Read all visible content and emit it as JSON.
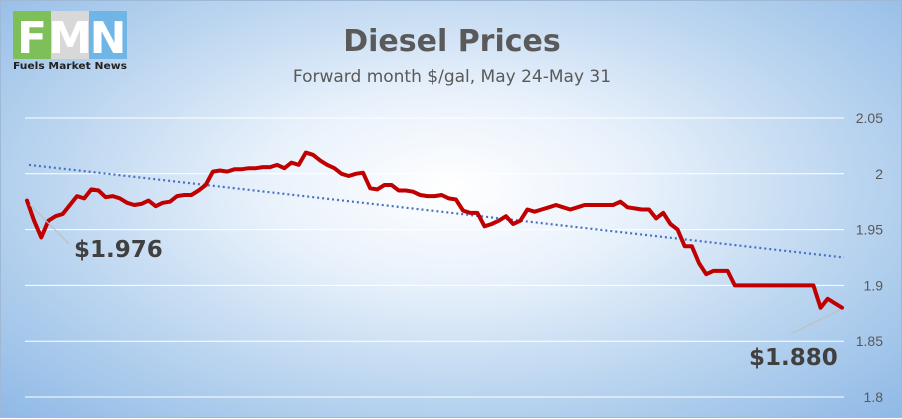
{
  "logo": {
    "letters": [
      "F",
      "M",
      "N"
    ],
    "letter_colors": [
      "#7fbf5a",
      "#e8e8e8",
      "#6fb6e6"
    ],
    "tagline": "Fuels Market News"
  },
  "chart_data": {
    "type": "line",
    "title": "Diesel Prices",
    "subtitle": "Forward month $/gal, May 24-May 31",
    "ylim": [
      1.8,
      2.05
    ],
    "y_ticks": [
      1.8,
      1.85,
      1.9,
      1.95,
      2.0,
      2.05
    ],
    "y_tick_labels": [
      "1.8",
      "1.85",
      "1.9",
      "1.95",
      "2",
      "2.05"
    ],
    "grid": true,
    "series": [
      {
        "color": "#c00000",
        "values": [
          1.976,
          1.958,
          1.943,
          1.958,
          1.962,
          1.964,
          1.972,
          1.98,
          1.978,
          1.986,
          1.985,
          1.979,
          1.98,
          1.978,
          1.974,
          1.972,
          1.973,
          1.976,
          1.971,
          1.974,
          1.975,
          1.98,
          1.981,
          1.981,
          1.985,
          1.99,
          2.002,
          2.003,
          2.002,
          2.004,
          2.004,
          2.005,
          2.005,
          2.006,
          2.006,
          2.008,
          2.005,
          2.01,
          2.008,
          2.019,
          2.017,
          2.012,
          2.008,
          2.005,
          2.0,
          1.998,
          2.0,
          2.001,
          1.987,
          1.986,
          1.99,
          1.99,
          1.985,
          1.985,
          1.984,
          1.981,
          1.98,
          1.98,
          1.981,
          1.978,
          1.977,
          1.967,
          1.965,
          1.965,
          1.953,
          1.955,
          1.958,
          1.962,
          1.955,
          1.958,
          1.968,
          1.966,
          1.968,
          1.97,
          1.972,
          1.97,
          1.968,
          1.97,
          1.972,
          1.972,
          1.972,
          1.972,
          1.972,
          1.975,
          1.97,
          1.969,
          1.968,
          1.968,
          1.96,
          1.965,
          1.955,
          1.95,
          1.935,
          1.935,
          1.92,
          1.91,
          1.913,
          1.913,
          1.913,
          1.9,
          1.9,
          1.9,
          1.9,
          1.9,
          1.9,
          1.9,
          1.9,
          1.9,
          1.9,
          1.9,
          1.9,
          1.88,
          1.888,
          1.884,
          1.88
        ]
      }
    ],
    "trendline": {
      "style": "dotted-linear",
      "color": "#4472c4",
      "start": 2.008,
      "end": 1.925
    },
    "annotations": [
      {
        "label": "$1.976",
        "value": 1.976,
        "point": "first"
      },
      {
        "label": "$1.880",
        "value": 1.88,
        "point": "last"
      }
    ]
  }
}
